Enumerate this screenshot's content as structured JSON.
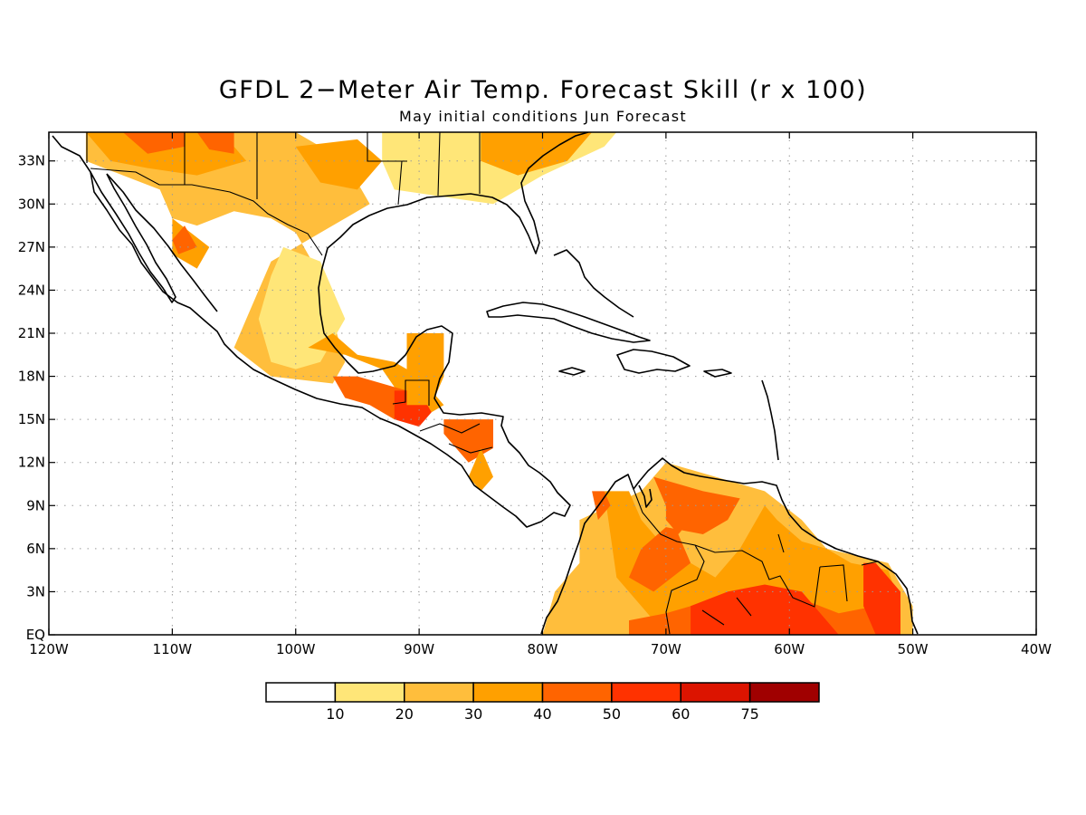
{
  "title": "GFDL 2−Meter Air Temp. Forecast Skill (r x 100)",
  "subtitle": "May initial conditions  Jun Forecast",
  "map": {
    "region": {
      "lon": [
        -120,
        -40
      ],
      "lat": [
        0,
        35
      ]
    },
    "lat_ticks": [
      {
        "v": 33,
        "label": "33N"
      },
      {
        "v": 30,
        "label": "30N"
      },
      {
        "v": 27,
        "label": "27N"
      },
      {
        "v": 24,
        "label": "24N"
      },
      {
        "v": 21,
        "label": "21N"
      },
      {
        "v": 18,
        "label": "18N"
      },
      {
        "v": 15,
        "label": "15N"
      },
      {
        "v": 12,
        "label": "12N"
      },
      {
        "v": 9,
        "label": "9N"
      },
      {
        "v": 6,
        "label": "6N"
      },
      {
        "v": 3,
        "label": "3N"
      },
      {
        "v": 0,
        "label": "EQ"
      }
    ],
    "lon_ticks": [
      {
        "v": -120,
        "label": "120W"
      },
      {
        "v": -110,
        "label": "110W"
      },
      {
        "v": -100,
        "label": "100W"
      },
      {
        "v": -90,
        "label": "90W"
      },
      {
        "v": -80,
        "label": "80W"
      },
      {
        "v": -70,
        "label": "70W"
      },
      {
        "v": -60,
        "label": "60W"
      },
      {
        "v": -50,
        "label": "50W"
      },
      {
        "v": -40,
        "label": "40W"
      }
    ],
    "grid": true
  },
  "colorbar": {
    "colors": [
      "#ffffff",
      "#ffe678",
      "#ffbe3c",
      "#ffa000",
      "#ff6400",
      "#ff3200",
      "#dc1400",
      "#a00000"
    ],
    "labels": [
      "10",
      "20",
      "30",
      "40",
      "50",
      "60",
      "75"
    ]
  },
  "skill_regions": [
    {
      "level": 2,
      "poly": [
        [
          -117,
          35
        ],
        [
          -100,
          35
        ],
        [
          -96,
          33
        ],
        [
          -94,
          30
        ],
        [
          -98,
          28
        ],
        [
          -102,
          26
        ],
        [
          -104,
          22
        ],
        [
          -105,
          20
        ],
        [
          -102,
          18
        ],
        [
          -97,
          17.5
        ],
        [
          -96,
          19
        ],
        [
          -97,
          22
        ],
        [
          -98,
          25
        ],
        [
          -100,
          28
        ],
        [
          -102,
          29
        ],
        [
          -105,
          29.5
        ],
        [
          -108,
          28.5
        ],
        [
          -110,
          29
        ],
        [
          -111,
          31
        ],
        [
          -114,
          32
        ],
        [
          -117,
          33
        ]
      ]
    },
    {
      "level": 1,
      "poly": [
        [
          -101,
          27
        ],
        [
          -98,
          26
        ],
        [
          -96,
          22
        ],
        [
          -98,
          19
        ],
        [
          -100,
          18.5
        ],
        [
          -102,
          19
        ],
        [
          -103,
          22
        ],
        [
          -102,
          25
        ]
      ]
    },
    {
      "level": 1,
      "poly": [
        [
          -93,
          35
        ],
        [
          -74,
          35
        ],
        [
          -75,
          34
        ],
        [
          -80,
          32
        ],
        [
          -84,
          30
        ],
        [
          -88,
          30.5
        ],
        [
          -92,
          31
        ],
        [
          -93,
          33
        ]
      ]
    },
    {
      "level": 3,
      "poly": [
        [
          -117,
          35
        ],
        [
          -106,
          35
        ],
        [
          -104,
          33
        ],
        [
          -108,
          32
        ],
        [
          -112,
          32.5
        ],
        [
          -115,
          33
        ]
      ]
    },
    {
      "level": 3,
      "poly": [
        [
          -100,
          34
        ],
        [
          -95,
          34.5
        ],
        [
          -93,
          33
        ],
        [
          -95,
          31
        ],
        [
          -98,
          31.5
        ]
      ]
    },
    {
      "level": 3,
      "poly": [
        [
          -85,
          35
        ],
        [
          -76,
          35
        ],
        [
          -78,
          33
        ],
        [
          -82,
          32
        ],
        [
          -85,
          33
        ]
      ]
    },
    {
      "level": 3,
      "poly": [
        [
          -110,
          29
        ],
        [
          -107,
          27
        ],
        [
          -108,
          25.5
        ],
        [
          -110,
          26.5
        ]
      ]
    },
    {
      "level": 4,
      "poly": [
        [
          -114,
          35
        ],
        [
          -109,
          35
        ],
        [
          -109,
          34
        ],
        [
          -112,
          33.5
        ]
      ]
    },
    {
      "level": 4,
      "poly": [
        [
          -108,
          35
        ],
        [
          -105,
          35
        ],
        [
          -105,
          33.5
        ],
        [
          -107,
          33.8
        ]
      ]
    },
    {
      "level": 4,
      "poly": [
        [
          -109,
          28.5
        ],
        [
          -108,
          27
        ],
        [
          -109.5,
          26.5
        ],
        [
          -110,
          27.5
        ]
      ]
    },
    {
      "level": 3,
      "poly": [
        [
          -99,
          20
        ],
        [
          -96,
          19.5
        ],
        [
          -93,
          18.5
        ],
        [
          -91,
          16
        ],
        [
          -89,
          15.5
        ],
        [
          -88,
          16
        ],
        [
          -90,
          18
        ],
        [
          -92,
          19
        ],
        [
          -95,
          19.5
        ],
        [
          -97,
          21
        ]
      ]
    },
    {
      "level": 4,
      "poly": [
        [
          -97,
          18
        ],
        [
          -95,
          18
        ],
        [
          -93,
          17.5
        ],
        [
          -91,
          17
        ],
        [
          -90,
          15
        ],
        [
          -92,
          15
        ],
        [
          -94,
          16
        ],
        [
          -96,
          16.5
        ]
      ]
    },
    {
      "level": 5,
      "poly": [
        [
          -92,
          17
        ],
        [
          -90,
          17
        ],
        [
          -89,
          15.5
        ],
        [
          -90,
          14.5
        ],
        [
          -92,
          15
        ]
      ]
    },
    {
      "level": 3,
      "poly": [
        [
          -91,
          21
        ],
        [
          -88,
          21
        ],
        [
          -88,
          18
        ],
        [
          -89,
          16
        ],
        [
          -91,
          16
        ],
        [
          -91,
          18
        ]
      ]
    },
    {
      "level": 4,
      "poly": [
        [
          -88,
          15
        ],
        [
          -84,
          15
        ],
        [
          -84,
          13
        ],
        [
          -86,
          12
        ],
        [
          -87,
          13
        ],
        [
          -88,
          14
        ]
      ]
    },
    {
      "level": 3,
      "poly": [
        [
          -85,
          13
        ],
        [
          -84,
          11
        ],
        [
          -85,
          10
        ],
        [
          -86,
          11
        ]
      ]
    },
    {
      "level": 2,
      "poly": [
        [
          -77,
          8
        ],
        [
          -72,
          10
        ],
        [
          -70,
          12
        ],
        [
          -62,
          10
        ],
        [
          -59,
          8
        ],
        [
          -57,
          6
        ],
        [
          -52,
          5
        ],
        [
          -50,
          2
        ],
        [
          -50,
          0
        ],
        [
          -80,
          0
        ],
        [
          -79,
          3
        ],
        [
          -77,
          5
        ],
        [
          -77,
          8
        ]
      ]
    },
    {
      "level": 3,
      "poly": [
        [
          -75,
          10
        ],
        [
          -73,
          10
        ],
        [
          -72,
          8
        ],
        [
          -70,
          6
        ],
        [
          -66,
          4
        ],
        [
          -64,
          6
        ],
        [
          -62,
          9
        ],
        [
          -61,
          8
        ],
        [
          -59,
          6.5
        ],
        [
          -57,
          6
        ],
        [
          -55,
          5
        ],
        [
          -52,
          4.5
        ],
        [
          -51,
          2
        ],
        [
          -51,
          0
        ],
        [
          -70,
          0
        ],
        [
          -72,
          2
        ],
        [
          -74,
          4
        ]
      ]
    },
    {
      "level": 4,
      "poly": [
        [
          -71,
          11
        ],
        [
          -67,
          10
        ],
        [
          -64,
          9.5
        ],
        [
          -65,
          8
        ],
        [
          -67,
          7
        ],
        [
          -70,
          7.5
        ],
        [
          -72,
          6
        ],
        [
          -73,
          4
        ],
        [
          -71,
          3
        ],
        [
          -68,
          5
        ]
      ]
    },
    {
      "level": 4,
      "poly": [
        [
          -73,
          1
        ],
        [
          -70,
          1.5
        ],
        [
          -68,
          2
        ],
        [
          -65,
          2.5
        ],
        [
          -62,
          3
        ],
        [
          -59,
          2.5
        ],
        [
          -56,
          1.5
        ],
        [
          -53,
          2
        ],
        [
          -51.5,
          3
        ],
        [
          -51,
          0
        ],
        [
          -73,
          0
        ]
      ]
    },
    {
      "level": 5,
      "poly": [
        [
          -68,
          2
        ],
        [
          -65,
          3
        ],
        [
          -62,
          3.5
        ],
        [
          -59,
          3
        ],
        [
          -57,
          1
        ],
        [
          -56,
          0
        ],
        [
          -68,
          0
        ]
      ]
    },
    {
      "level": 5,
      "poly": [
        [
          -54,
          5
        ],
        [
          -53,
          5
        ],
        [
          -51,
          3
        ],
        [
          -51,
          0
        ],
        [
          -53,
          0
        ],
        [
          -54,
          2
        ]
      ]
    },
    {
      "level": 4,
      "poly": [
        [
          -76,
          10
        ],
        [
          -75,
          10
        ],
        [
          -74.5,
          9
        ],
        [
          -75.5,
          8
        ]
      ]
    },
    {
      "level": 4,
      "poly": [
        [
          -70,
          10.5
        ],
        [
          -69,
          10.5
        ],
        [
          -68,
          8
        ],
        [
          -69,
          7
        ],
        [
          -70,
          8
        ]
      ]
    }
  ]
}
